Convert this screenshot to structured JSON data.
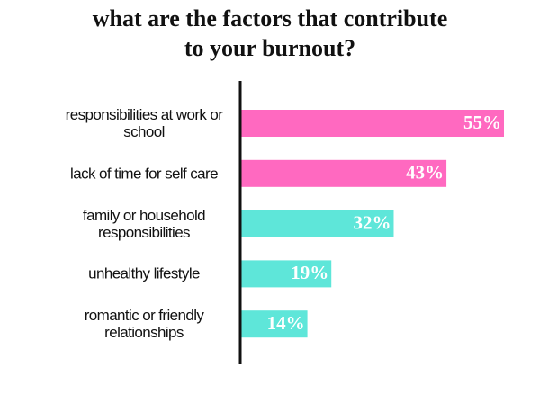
{
  "chart_data": {
    "type": "bar",
    "orientation": "horizontal",
    "title": "what are the factors that contribute to your burnout?",
    "categories": [
      "responsibilities at work or school",
      "lack of time for self care",
      "family or household responsibilities",
      "unhealthy lifestyle",
      "romantic or friendly relationships"
    ],
    "values": [
      55,
      43,
      32,
      19,
      14
    ],
    "value_labels": [
      "55%",
      "43%",
      "32%",
      "19%",
      "14%"
    ],
    "colors": [
      "#ff69c0",
      "#ff69c0",
      "#5ee6d9",
      "#5ee6d9",
      "#5ee6d9"
    ]
  }
}
